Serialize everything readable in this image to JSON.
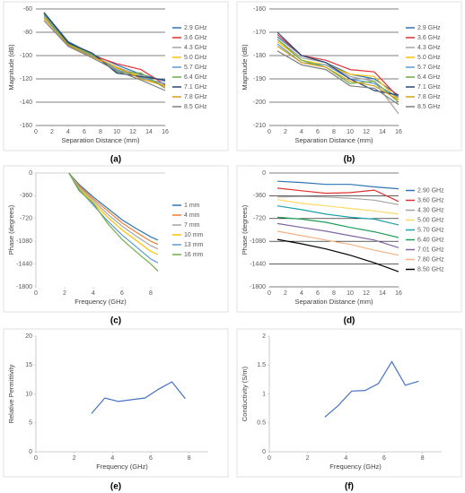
{
  "chart_data": [
    {
      "type": "line",
      "label": "(a)",
      "xlabel": "Separation Distance (mm)",
      "ylabel": "Magnitude (dB)",
      "x": [
        1,
        4,
        7,
        10,
        13,
        16
      ],
      "xlim": [
        0,
        16
      ],
      "xticks": [
        0,
        2,
        4,
        6,
        8,
        10,
        12,
        14,
        16
      ],
      "ylim": [
        -160,
        -60
      ],
      "yticks": [
        -160,
        -140,
        -120,
        -100,
        -80,
        -60
      ],
      "grid": true,
      "legend": "right",
      "series": [
        {
          "name": "2.9 GHz",
          "color": "#2e75b6",
          "values": [
            -63,
            -88,
            -99,
            -108,
            -116,
            -122
          ]
        },
        {
          "name": "3.6 GHz",
          "color": "#e03131",
          "values": [
            -64,
            -89,
            -100,
            -107,
            -112,
            -125
          ]
        },
        {
          "name": "4.3 GHz",
          "color": "#a5a5a5",
          "values": [
            -66,
            -90,
            -100,
            -110,
            -117,
            -126
          ]
        },
        {
          "name": "5.0 GHz",
          "color": "#ffc000",
          "values": [
            -67,
            -91,
            -101,
            -111,
            -118,
            -127
          ]
        },
        {
          "name": "5.7 GHz",
          "color": "#5b9bd5",
          "values": [
            -65,
            -92,
            -100,
            -112,
            -119,
            -124
          ]
        },
        {
          "name": "6.4 GHz",
          "color": "#70ad47",
          "values": [
            -64,
            -90,
            -99,
            -114,
            -115,
            -128
          ]
        },
        {
          "name": "7.1 GHz",
          "color": "#264478",
          "values": [
            -63,
            -89,
            -98,
            -115,
            -118,
            -121
          ]
        },
        {
          "name": "7.8 GHz",
          "color": "#d4a017",
          "values": [
            -68,
            -91,
            -101,
            -110,
            -120,
            -126
          ]
        },
        {
          "name": "8.5 GHz",
          "color": "#7f7f7f",
          "values": [
            -70,
            -92,
            -102,
            -113,
            -121,
            -130
          ]
        }
      ]
    },
    {
      "type": "line",
      "label": "(b)",
      "xlabel": "Separation Distance (mm)",
      "ylabel": "Magnitude (dB)",
      "x": [
        1,
        4,
        7,
        10,
        13,
        16
      ],
      "xlim": [
        0,
        16
      ],
      "xticks": [
        0,
        2,
        4,
        6,
        8,
        10,
        12,
        14,
        16
      ],
      "ylim": [
        -210,
        -160
      ],
      "yticks": [
        -210,
        -200,
        -190,
        -180,
        -170,
        -160
      ],
      "grid": true,
      "legend": "right",
      "series": [
        {
          "name": "2.9 GHz",
          "color": "#2e75b6",
          "values": [
            -172,
            -180,
            -183,
            -188,
            -190,
            -197
          ]
        },
        {
          "name": "3.6 GHz",
          "color": "#e03131",
          "values": [
            -171,
            -180,
            -182,
            -186,
            -187,
            -198
          ]
        },
        {
          "name": "4.3 GHz",
          "color": "#a5a5a5",
          "values": [
            -173,
            -181,
            -183,
            -189,
            -191,
            -205
          ]
        },
        {
          "name": "5.0 GHz",
          "color": "#ffc000",
          "values": [
            -174,
            -182,
            -184,
            -188,
            -189,
            -199
          ]
        },
        {
          "name": "5.7 GHz",
          "color": "#5b9bd5",
          "values": [
            -175,
            -183,
            -184,
            -190,
            -192,
            -198
          ]
        },
        {
          "name": "6.4 GHz",
          "color": "#70ad47",
          "values": [
            -173,
            -182,
            -185,
            -192,
            -191,
            -200
          ]
        },
        {
          "name": "7.1 GHz",
          "color": "#264478",
          "values": [
            -170,
            -180,
            -183,
            -190,
            -195,
            -197
          ]
        },
        {
          "name": "7.8 GHz",
          "color": "#d4a017",
          "values": [
            -176,
            -183,
            -185,
            -191,
            -193,
            -199
          ]
        },
        {
          "name": "8.5 GHz",
          "color": "#7f7f7f",
          "values": [
            -178,
            -184,
            -186,
            -193,
            -194,
            -201
          ]
        }
      ]
    },
    {
      "type": "line",
      "label": "(c)",
      "xlabel": "Frequency (GHz)",
      "ylabel": "Phase (degrees)",
      "x": [
        2.3,
        3,
        4,
        5,
        6,
        7,
        8,
        8.5
      ],
      "xlim": [
        0,
        9
      ],
      "xticks": [
        0,
        2,
        4,
        6,
        8
      ],
      "ylim": [
        -1800,
        0
      ],
      "yticks": [
        -1800,
        -1440,
        -1080,
        -720,
        -360,
        0
      ],
      "grid": false,
      "legend": "right",
      "series": [
        {
          "name": "1 mm",
          "color": "#2e75b6",
          "values": [
            0,
            -180,
            -380,
            -560,
            -740,
            -880,
            -1010,
            -1060
          ]
        },
        {
          "name": "4 mm",
          "color": "#ed7d31",
          "values": [
            0,
            -200,
            -410,
            -600,
            -790,
            -940,
            -1080,
            -1130
          ]
        },
        {
          "name": "7 mm",
          "color": "#a5a5a5",
          "values": [
            0,
            -220,
            -440,
            -650,
            -840,
            -1000,
            -1150,
            -1200
          ]
        },
        {
          "name": "10 mm",
          "color": "#ffc000",
          "values": [
            0,
            -240,
            -470,
            -700,
            -900,
            -1070,
            -1240,
            -1290
          ]
        },
        {
          "name": "13 mm",
          "color": "#5b9bd5",
          "values": [
            0,
            -260,
            -510,
            -760,
            -980,
            -1170,
            -1360,
            -1420
          ]
        },
        {
          "name": "16 mm",
          "color": "#70ad47",
          "values": [
            0,
            -280,
            -480,
            -800,
            -1050,
            -1250,
            -1440,
            -1550
          ]
        }
      ]
    },
    {
      "type": "line",
      "label": "(d)",
      "xlabel": "Separation Distance (mm)",
      "ylabel": "Phase (degrees)",
      "x": [
        1,
        4,
        7,
        10,
        13,
        16
      ],
      "xlim": [
        0,
        16
      ],
      "xticks": [
        0,
        2,
        4,
        6,
        8,
        10,
        12,
        14,
        16
      ],
      "ylim": [
        -1800,
        0
      ],
      "yticks": [
        -1800,
        -1440,
        -1080,
        -720,
        -360,
        0
      ],
      "grid": true,
      "legend": "right",
      "series": [
        {
          "name": "2.90 GHz",
          "color": "#2e75b6",
          "values": [
            -130,
            -150,
            -180,
            -180,
            -220,
            -250
          ]
        },
        {
          "name": "3.60 GHz",
          "color": "#e03131",
          "values": [
            -240,
            -280,
            -320,
            -310,
            -270,
            -450
          ]
        },
        {
          "name": "4.30 GHz",
          "color": "#a5a5a5",
          "values": [
            -380,
            -370,
            -380,
            -400,
            -430,
            -500
          ]
        },
        {
          "name": "5.00 GHz",
          "color": "#ffd966",
          "values": [
            -420,
            -480,
            -520,
            -560,
            -600,
            -650
          ]
        },
        {
          "name": "5.70 GHz",
          "color": "#1fa0a8",
          "values": [
            -520,
            -580,
            -650,
            -700,
            -730,
            -820
          ]
        },
        {
          "name": "6.40 GHz",
          "color": "#1e9e5a",
          "values": [
            -700,
            -730,
            -780,
            -860,
            -930,
            -1020
          ]
        },
        {
          "name": "7.01 GHz",
          "color": "#8064a2",
          "values": [
            -800,
            -860,
            -920,
            -990,
            -1060,
            -1180
          ]
        },
        {
          "name": "7.80 GHz",
          "color": "#f4b183",
          "values": [
            -920,
            -990,
            -1060,
            -1130,
            -1220,
            -1300
          ]
        },
        {
          "name": "8.50 GHz",
          "color": "#000000",
          "values": [
            -1050,
            -1120,
            -1200,
            -1300,
            -1420,
            -1560
          ]
        }
      ]
    },
    {
      "type": "line",
      "label": "(e)",
      "xlabel": "Frequency (GHz)",
      "ylabel": "Relative Permittivity",
      "x": [
        2.9,
        3.6,
        4.3,
        5.0,
        5.7,
        6.4,
        7.1,
        7.8
      ],
      "xlim": [
        0,
        9
      ],
      "xticks": [
        0,
        2,
        4,
        6,
        8
      ],
      "ylim": [
        0,
        20
      ],
      "yticks": [
        0,
        5,
        10,
        15,
        20
      ],
      "grid": false,
      "color": "#4472c4",
      "values": [
        6.6,
        9.3,
        8.7,
        9.0,
        9.3,
        10.8,
        12.1,
        9.2
      ]
    },
    {
      "type": "line",
      "label": "(f)",
      "xlabel": "Frequency (GHz)",
      "ylabel": "Conductivity (S/m)",
      "x": [
        2.9,
        3.6,
        4.3,
        5.0,
        5.7,
        6.4,
        7.1,
        7.8
      ],
      "xlim": [
        0,
        9
      ],
      "xticks": [
        0,
        2,
        4,
        6,
        8
      ],
      "ylim": [
        0,
        2
      ],
      "yticks": [
        0,
        0.5,
        1,
        1.5,
        2
      ],
      "grid": false,
      "color": "#4472c4",
      "values": [
        0.6,
        0.8,
        1.05,
        1.06,
        1.18,
        1.56,
        1.15,
        1.22
      ]
    }
  ]
}
